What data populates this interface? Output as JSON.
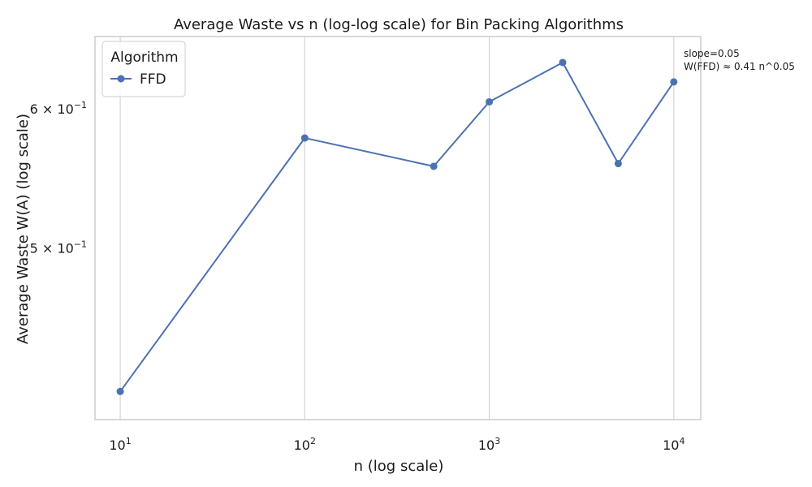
{
  "chart_data": {
    "type": "line",
    "title": "Average Waste vs n (log-log scale) for Bin Packing Algorithms",
    "xlabel": "n (log scale)",
    "ylabel": "Average Waste W(A) (log scale)",
    "xscale": "log",
    "yscale": "log",
    "grid": "vertical",
    "legend_placement": "top-left",
    "legend_title": "Algorithm",
    "series": [
      {
        "name": "FFD",
        "color": "#4c72b0",
        "x": [
          10,
          100,
          500,
          1000,
          2500,
          5000,
          10000
        ],
        "y": [
          0.415,
          0.578,
          0.557,
          0.606,
          0.638,
          0.559,
          0.622
        ]
      }
    ],
    "xticks": [
      {
        "value": 10,
        "base": "10",
        "exp": "1"
      },
      {
        "value": 100,
        "base": "10",
        "exp": "2"
      },
      {
        "value": 1000,
        "base": "10",
        "exp": "3"
      },
      {
        "value": 10000,
        "base": "10",
        "exp": "4"
      }
    ],
    "yticks": [
      {
        "value": 0.5,
        "base": "5 × 10",
        "exp": "−1"
      },
      {
        "value": 0.6,
        "base": "6 × 10",
        "exp": "−1"
      }
    ],
    "annotation": {
      "line1": "slope=0.05",
      "line2": "W(FFD) ≈ 0.41 n^0.05"
    }
  }
}
